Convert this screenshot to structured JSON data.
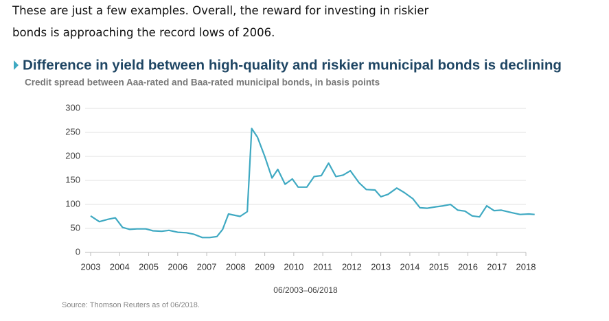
{
  "intro": [
    "These are just a few examples. Overall, the reward for investing in riskier",
    "bonds is approaching the record lows of 2006."
  ],
  "chart_data": {
    "type": "line",
    "title": "Difference in yield between high-quality and riskier municipal bonds is declining",
    "subtitle": "Credit spread between Aaa-rated and Baa-rated municipal bonds, in basis points",
    "x_label": "06/2003–06/2018",
    "source": "Source: Thomson Reuters as of 06/2018.",
    "x": [
      2003.0,
      2003.3,
      2003.6,
      2003.85,
      2004.1,
      2004.35,
      2004.6,
      2004.9,
      2005.15,
      2005.45,
      2005.7,
      2006.0,
      2006.3,
      2006.55,
      2006.85,
      2007.1,
      2007.35,
      2007.55,
      2007.75,
      2008.15,
      2008.4,
      2008.55,
      2008.75,
      2009.0,
      2009.25,
      2009.45,
      2009.7,
      2009.95,
      2010.15,
      2010.45,
      2010.7,
      2010.95,
      2011.2,
      2011.45,
      2011.7,
      2011.95,
      2012.25,
      2012.5,
      2012.8,
      2013.0,
      2013.25,
      2013.55,
      2013.8,
      2014.1,
      2014.35,
      2014.6,
      2014.9,
      2015.15,
      2015.4,
      2015.65,
      2015.9,
      2016.15,
      2016.4,
      2016.65,
      2016.9,
      2017.15,
      2017.5,
      2017.8,
      2018.1,
      2018.3
    ],
    "series": [
      {
        "name": "Credit spread",
        "color": "#3fa9c2",
        "values": [
          76,
          64,
          69,
          72,
          52,
          48,
          49,
          49,
          45,
          44,
          46,
          42,
          41,
          38,
          31,
          31,
          33,
          48,
          80,
          75,
          85,
          258,
          240,
          200,
          155,
          173,
          142,
          153,
          136,
          136,
          158,
          160,
          186,
          158,
          161,
          170,
          145,
          131,
          130,
          116,
          121,
          134,
          125,
          112,
          93,
          92,
          95,
          97,
          100,
          88,
          86,
          76,
          74,
          97,
          87,
          88,
          83,
          79,
          80,
          79
        ]
      }
    ],
    "xlim": [
      2003,
      2018
    ],
    "xticks": [
      2003,
      2004,
      2005,
      2006,
      2007,
      2008,
      2009,
      2010,
      2011,
      2012,
      2013,
      2014,
      2015,
      2016,
      2017,
      2018
    ],
    "ylim": [
      0,
      300
    ],
    "yticks": [
      0,
      50,
      100,
      150,
      200,
      250,
      300
    ],
    "grid": true
  }
}
